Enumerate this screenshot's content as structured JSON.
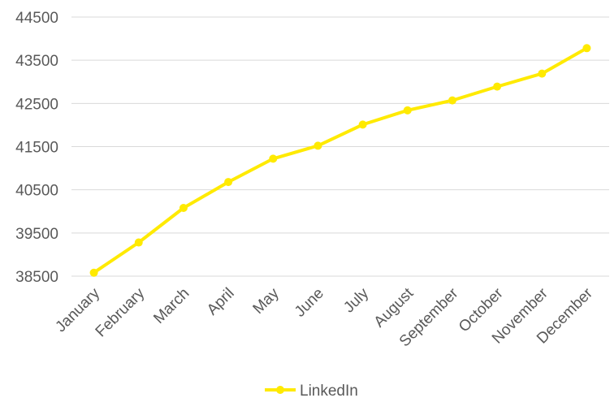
{
  "chart_data": {
    "type": "line",
    "title": "",
    "xlabel": "",
    "ylabel": "",
    "categories": [
      "January",
      "February",
      "March",
      "April",
      "May",
      "June",
      "July",
      "August",
      "September",
      "October",
      "November",
      "December"
    ],
    "series": [
      {
        "name": "LinkedIn",
        "color": "#ffea00",
        "values": [
          38580,
          39280,
          40080,
          40680,
          41220,
          41520,
          42010,
          42340,
          42570,
          42890,
          43190,
          43780
        ]
      }
    ],
    "ylim": [
      38500,
      44500
    ],
    "yticks": [
      38500,
      39500,
      40500,
      41500,
      42500,
      43500,
      44500
    ],
    "ytick_labels": [
      "38500",
      "39500",
      "40500",
      "41500",
      "42500",
      "43500",
      "44500"
    ],
    "grid": "horizontal",
    "legend_position": "bottom"
  }
}
